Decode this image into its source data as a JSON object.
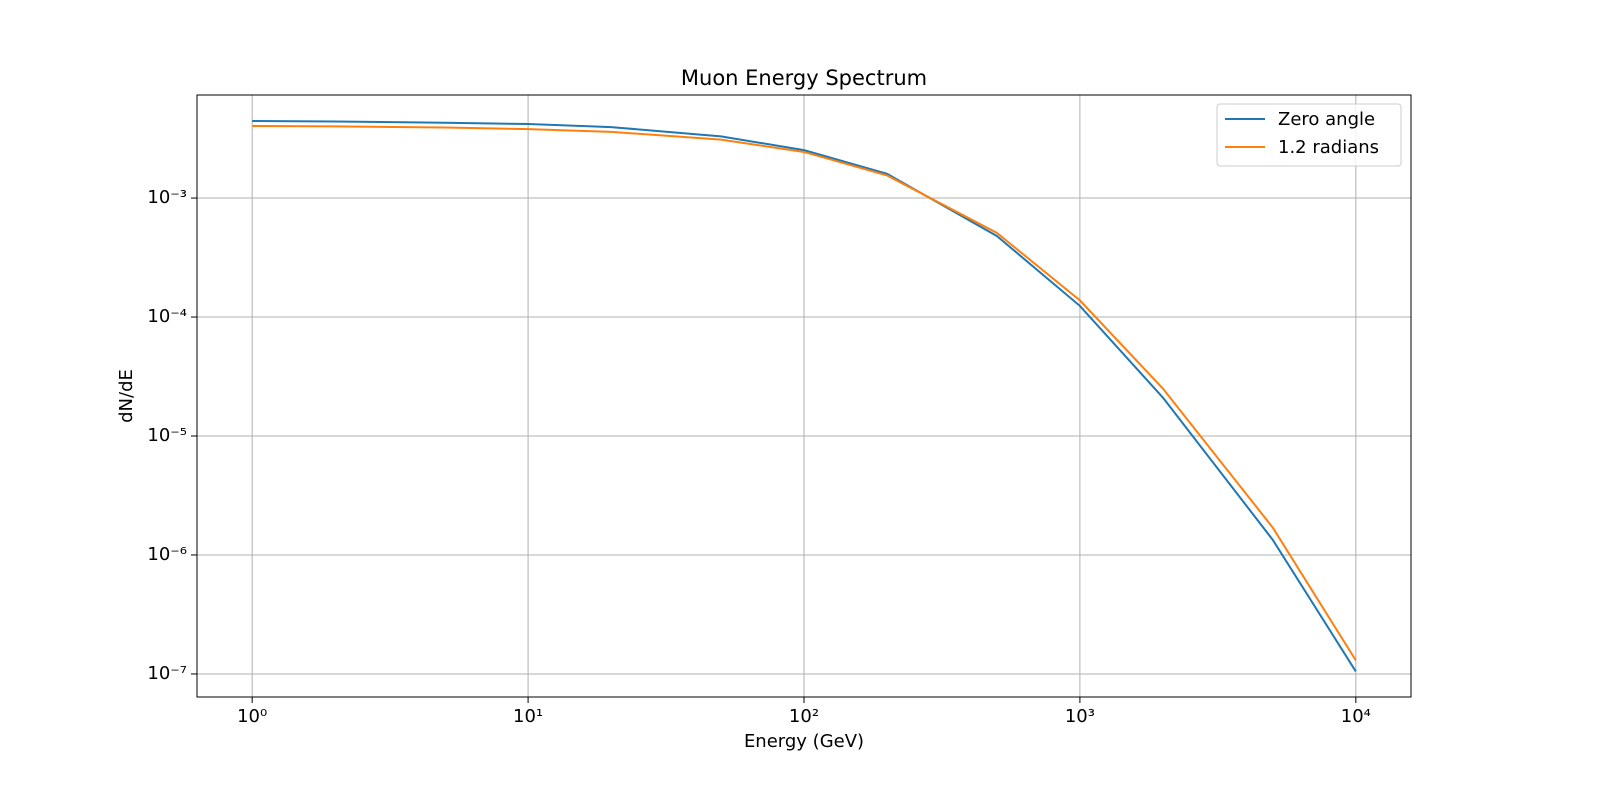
{
  "chart_data": {
    "type": "line",
    "title": "Muon Energy Spectrum",
    "x_label": "Energy (GeV)",
    "y_label": "dN/dE",
    "xscale": "log",
    "yscale": "log",
    "grid": true,
    "legend": "upper right",
    "x": [
      1,
      2,
      5,
      10,
      20,
      50,
      100,
      200,
      500,
      1000,
      2000,
      5000,
      10000
    ],
    "series": [
      {
        "name": "Zero angle",
        "color": "#1f77b4",
        "values": [
          0.00444,
          0.0044,
          0.0043,
          0.00419,
          0.00395,
          0.0033,
          0.00253,
          0.0016,
          0.00048,
          0.000124,
          2.1e-05,
          1.34e-06,
          1.05e-07
        ]
      },
      {
        "name": "1.2 radians",
        "color": "#ff7f0e",
        "values": [
          0.00403,
          0.004,
          0.00392,
          0.0038,
          0.0036,
          0.0031,
          0.00244,
          0.00155,
          0.00051,
          0.000138,
          2.5e-05,
          1.7e-06,
          1.3e-07
        ]
      }
    ],
    "xlim": [
      0.631,
      15849
    ],
    "ylim": [
      6.4e-08,
      0.00735
    ],
    "xticks": [
      {
        "value": 1,
        "label": "10⁰"
      },
      {
        "value": 10,
        "label": "10¹"
      },
      {
        "value": 100,
        "label": "10²"
      },
      {
        "value": 1000,
        "label": "10³"
      },
      {
        "value": 10000,
        "label": "10⁴"
      }
    ],
    "yticks": [
      {
        "value": 1e-07,
        "label": "10⁻⁷"
      },
      {
        "value": 1e-06,
        "label": "10⁻⁶"
      },
      {
        "value": 1e-05,
        "label": "10⁻⁵"
      },
      {
        "value": 0.0001,
        "label": "10⁻⁴"
      },
      {
        "value": 0.001,
        "label": "10⁻³"
      }
    ]
  }
}
